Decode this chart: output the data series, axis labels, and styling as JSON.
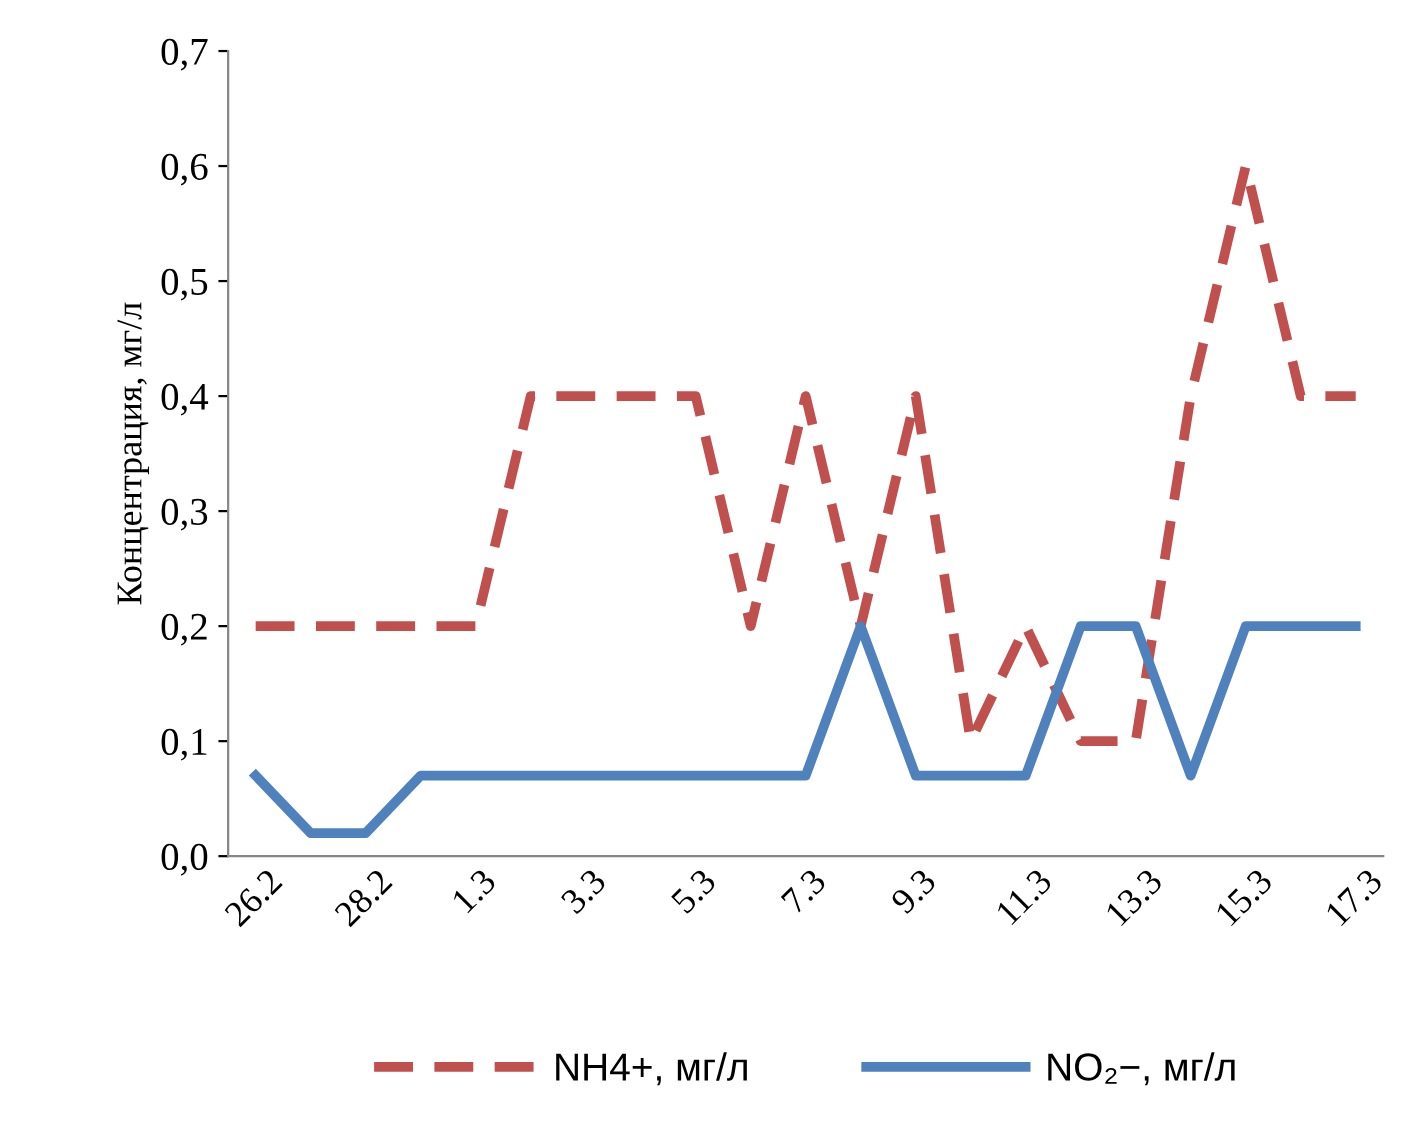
{
  "chart_data": {
    "type": "line",
    "ylabel": "Концентрация, мг/л",
    "categories": [
      "26.2",
      null,
      "28.2",
      null,
      "1.3",
      null,
      "3.3",
      null,
      "5.3",
      null,
      "7.3",
      null,
      "9.3",
      null,
      "11.3",
      null,
      "13.3",
      null,
      "15.3",
      null,
      "17.3"
    ],
    "series": [
      {
        "name": "NH4+, мг/л",
        "color": "#c0504d",
        "line_style": "dashed",
        "values": [
          0.2,
          0.2,
          0.2,
          0.2,
          0.2,
          0.4,
          0.4,
          0.4,
          0.4,
          0.2,
          0.4,
          0.2,
          0.4,
          0.1,
          0.2,
          0.1,
          0.1,
          0.4,
          0.6,
          0.4,
          0.4
        ]
      },
      {
        "name": "NO₂−, мг/л",
        "color": "#4f81bd",
        "line_style": "solid",
        "values": [
          0.07,
          0.02,
          0.02,
          0.07,
          0.07,
          0.07,
          0.07,
          0.07,
          0.07,
          0.07,
          0.07,
          0.2,
          0.07,
          0.07,
          0.07,
          0.2,
          0.2,
          0.07,
          0.2,
          0.2,
          0.2
        ]
      }
    ],
    "ylim": [
      0,
      0.7
    ],
    "yticks": [
      {
        "value": 0,
        "label": "0,0"
      },
      {
        "value": 0.1,
        "label": "0,1"
      },
      {
        "value": 0.2,
        "label": "0,2"
      },
      {
        "value": 0.3,
        "label": "0,3"
      },
      {
        "value": 0.4,
        "label": "0,4"
      },
      {
        "value": 0.5,
        "label": "0,5"
      },
      {
        "value": 0.6,
        "label": "0,6"
      },
      {
        "value": 0.7,
        "label": "0,7"
      }
    ],
    "grid": false,
    "legend": "bottom",
    "marker": "none"
  }
}
